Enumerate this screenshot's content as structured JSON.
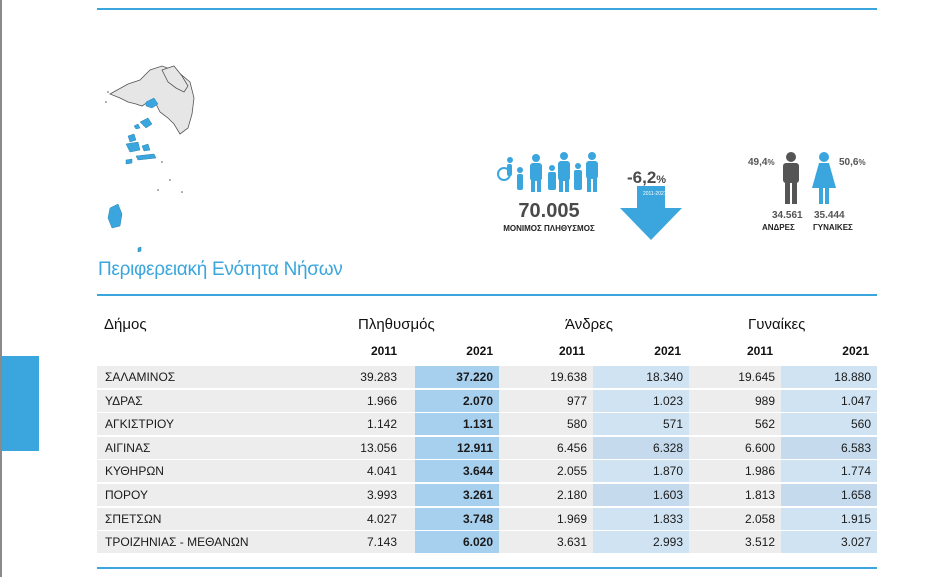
{
  "region_title": "Περιφερειακή Ενότητα Νήσων",
  "summary": {
    "total_population": "70.005",
    "total_label": "ΜΟΝΙΜΟΣ ΠΛΗΘΥΣΜΟΣ",
    "change_value": "-6,2",
    "change_unit": "%",
    "change_period": "2011-2021",
    "male_pct": "49,4",
    "female_pct": "50,6",
    "pct_unit": "%",
    "male_count": "34.561",
    "female_count": "35.444",
    "male_label": "ΑΝΔΡΕΣ",
    "female_label": "ΓΥΝΑΙΚΕΣ"
  },
  "colors": {
    "accent": "#3aa6dd",
    "col_2021_pop": "#a7cfee",
    "col_2021_sex": "#cfe3f3",
    "row_bg": "#ededed"
  },
  "table": {
    "headers": {
      "municipality": "Δήμος",
      "population": "Πληθυσμός",
      "men": "Άνδρες",
      "women": "Γυναίκες"
    },
    "years": [
      "2011",
      "2021",
      "2011",
      "2021",
      "2011",
      "2021"
    ],
    "rows": [
      {
        "name": "ΣΑΛΑΜΙΝΟΣ",
        "values": [
          "39.283",
          "37.220",
          "19.638",
          "18.340",
          "19.645",
          "18.880"
        ]
      },
      {
        "name": "ΥΔΡΑΣ",
        "values": [
          "1.966",
          "2.070",
          "977",
          "1.023",
          "989",
          "1.047"
        ]
      },
      {
        "name": "ΑΓΚΙΣΤΡΙΟΥ",
        "values": [
          "1.142",
          "1.131",
          "580",
          "571",
          "562",
          "560"
        ]
      },
      {
        "name": "ΑΙΓΙΝΑΣ",
        "values": [
          "13.056",
          "12.911",
          "6.456",
          "6.328",
          "6.600",
          "6.583"
        ]
      },
      {
        "name": "ΚΥΘΗΡΩΝ",
        "values": [
          "4.041",
          "3.644",
          "2.055",
          "1.870",
          "1.986",
          "1.774"
        ]
      },
      {
        "name": "ΠΟΡΟΥ",
        "values": [
          "3.993",
          "3.261",
          "2.180",
          "1.603",
          "1.813",
          "1.658"
        ]
      },
      {
        "name": "ΣΠΕΤΣΩΝ",
        "values": [
          "4.027",
          "3.748",
          "1.969",
          "1.833",
          "2.058",
          "1.915"
        ]
      },
      {
        "name": "ΤΡΟΙΖΗΝΙΑΣ - ΜΕΘΑΝΩΝ",
        "values": [
          "7.143",
          "6.020",
          "3.631",
          "2.993",
          "3.512",
          "3.027"
        ]
      }
    ]
  }
}
